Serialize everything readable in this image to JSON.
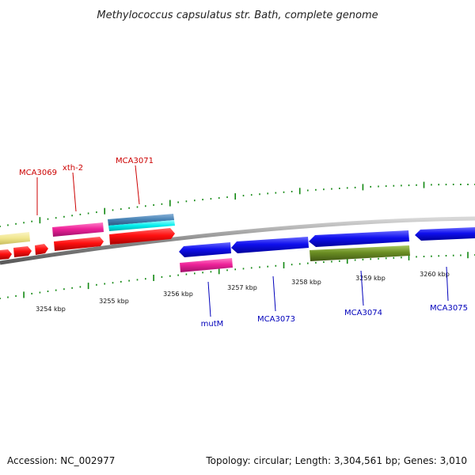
{
  "title": "Methylococcus capsulatus str. Bath, complete genome",
  "footer": {
    "accession": "Accession: NC_002977",
    "summary": "Topology: circular; Length: 3,304,561 bp; Genes: 3,010"
  },
  "colors": {
    "backbone": "#808080",
    "forward_label": "#cc0000",
    "reverse_label": "#0000bb",
    "tick": "#118811",
    "red": "#ff1010",
    "pink": "#ee2299",
    "cyan": "#00eeee",
    "steel": "#4682b4",
    "blue": "#1010ee",
    "olive": "#6b8e23",
    "khaki": "#f0e68c"
  },
  "scale_labels": [
    "3254 kbp",
    "3255 kbp",
    "3256 kbp",
    "3257 kbp",
    "3258 kbp",
    "3259 kbp",
    "3260 kbp"
  ],
  "gene_labels": {
    "forward": [
      "MCA3069",
      "xth-2",
      "MCA3071"
    ],
    "reverse": [
      "mutM",
      "MCA3073",
      "MCA3074",
      "MCA3075"
    ]
  }
}
